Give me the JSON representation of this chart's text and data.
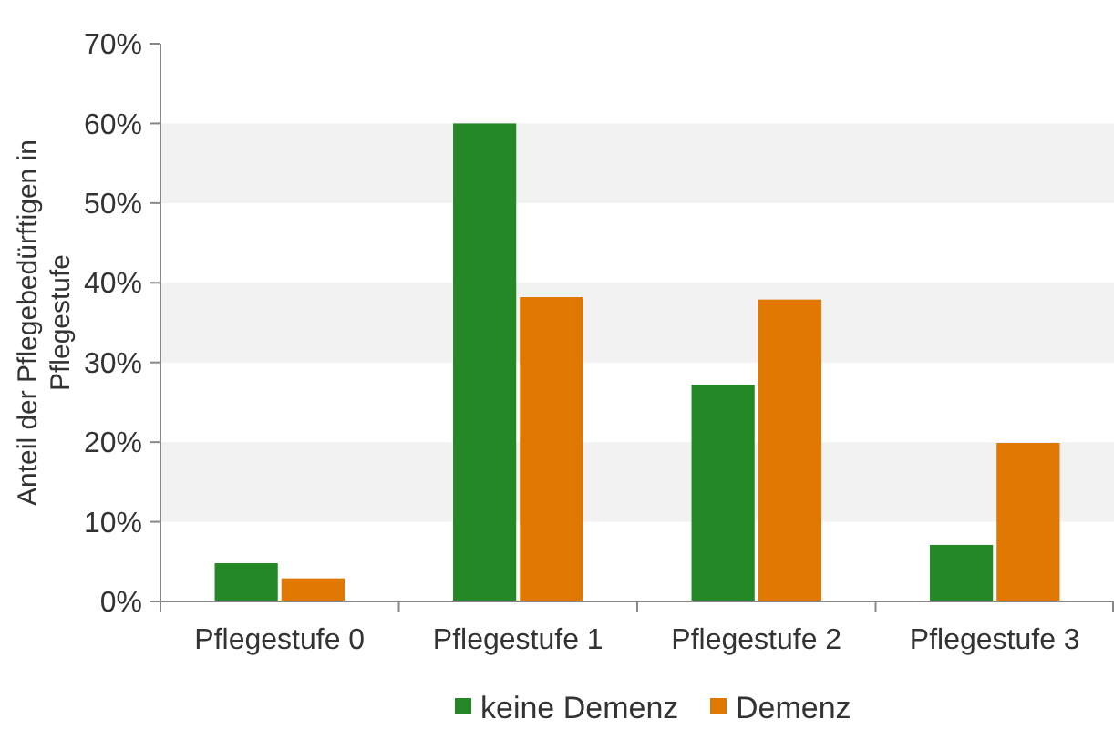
{
  "chart_data": {
    "type": "bar",
    "ylabel": "Anteil der Pflegebedürftigen in Pflegestufe",
    "categories": [
      "Pflegestufe 0",
      "Pflegestufe 1",
      "Pflegestufe 2",
      "Pflegestufe 3"
    ],
    "series": [
      {
        "name": "keine Demenz",
        "color": "#248827",
        "values": [
          4.8,
          60,
          27.2,
          7.1
        ]
      },
      {
        "name": "Demenz",
        "color": "#e07700",
        "values": [
          2.9,
          38.2,
          37.9,
          19.9
        ]
      }
    ],
    "ylim": [
      0,
      70
    ],
    "yticks": [
      {
        "value": 0,
        "label": "0%"
      },
      {
        "value": 10,
        "label": "10%"
      },
      {
        "value": 20,
        "label": "20%"
      },
      {
        "value": 30,
        "label": "30%"
      },
      {
        "value": 40,
        "label": "40%"
      },
      {
        "value": 50,
        "label": "50%"
      },
      {
        "value": 60,
        "label": "60%"
      },
      {
        "value": 70,
        "label": "70%"
      }
    ],
    "bands": [
      {
        "axis": "y",
        "from": 10,
        "to": 20,
        "color": "#f2f2f2"
      },
      {
        "axis": "y",
        "from": 30,
        "to": 40,
        "color": "#f2f2f2"
      },
      {
        "axis": "y",
        "from": 50,
        "to": 60,
        "color": "#f2f2f2"
      }
    ],
    "grid": false,
    "legend": "bottom"
  }
}
